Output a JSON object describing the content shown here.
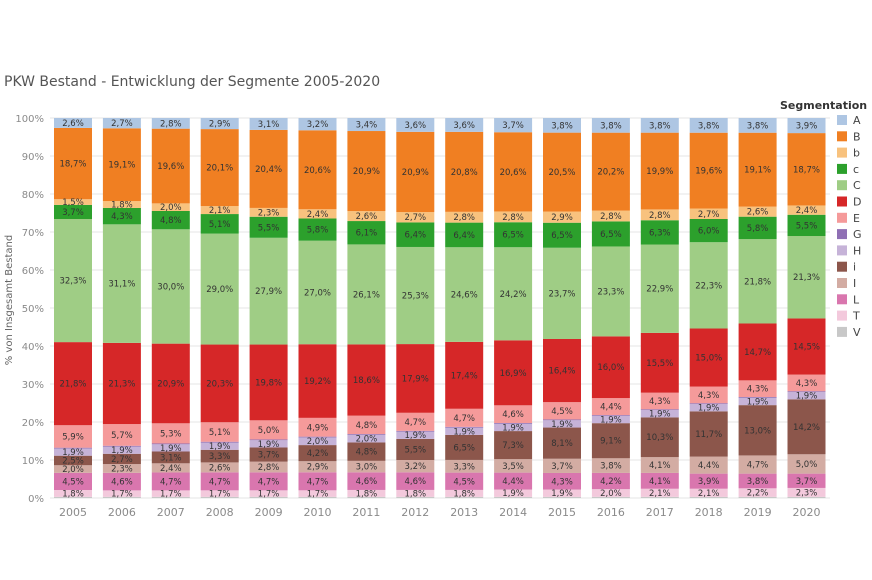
{
  "chart_data": {
    "type": "bar",
    "stacked": true,
    "title": "PKW Bestand - Entwicklung der Segmente 2005-2020",
    "ylabel": "% von Insgesamt Bestand",
    "ylim": [
      0,
      100
    ],
    "yticks": [
      "0%",
      "10%",
      "20%",
      "30%",
      "40%",
      "50%",
      "60%",
      "70%",
      "80%",
      "90%",
      "100%"
    ],
    "categories": [
      "2005",
      "2006",
      "2007",
      "2008",
      "2009",
      "2010",
      "2011",
      "2012",
      "2013",
      "2014",
      "2015",
      "2016",
      "2017",
      "2018",
      "2019",
      "2020"
    ],
    "legend": {
      "title": "Segmentation",
      "position": "right"
    },
    "series": [
      {
        "name": "V",
        "color": "#c8c8c8",
        "values": [
          0.3,
          0.3,
          0.3,
          0.3,
          0.3,
          0.3,
          0.3,
          0.3,
          0.3,
          0.3,
          0.3,
          0.3,
          0.3,
          0.3,
          0.3,
          0.3
        ],
        "labels": []
      },
      {
        "name": "T",
        "color": "#f3c9dc",
        "values": [
          1.8,
          1.7,
          1.7,
          1.7,
          1.7,
          1.7,
          1.8,
          1.8,
          1.8,
          1.9,
          1.9,
          2.0,
          2.1,
          2.1,
          2.2,
          2.3
        ],
        "labels": [
          "1,8%",
          "1,7%",
          "1,7%",
          "1,7%",
          "1,7%",
          "1,7%",
          "1,8%",
          "1,8%",
          "1,8%",
          "1,9%",
          "1,9%",
          "2,0%",
          "2,1%",
          "2,1%",
          "2,2%",
          "2,3%"
        ]
      },
      {
        "name": "L",
        "color": "#d976ae",
        "values": [
          4.5,
          4.6,
          4.7,
          4.7,
          4.7,
          4.7,
          4.6,
          4.6,
          4.5,
          4.4,
          4.3,
          4.2,
          4.1,
          3.9,
          3.8,
          3.7
        ],
        "labels": [
          "4,5%",
          "4,6%",
          "4,7%",
          "4,7%",
          "4,7%",
          "4,7%",
          "4,6%",
          "4,6%",
          "4,5%",
          "4,4%",
          "4,3%",
          "4,2%",
          "4,1%",
          "3,9%",
          "3,8%",
          "3,7%"
        ]
      },
      {
        "name": "I",
        "color": "#d3aca3",
        "values": [
          2.0,
          2.3,
          2.4,
          2.6,
          2.8,
          2.9,
          3.0,
          3.2,
          3.3,
          3.5,
          3.7,
          3.8,
          4.1,
          4.4,
          4.7,
          5.0
        ],
        "labels": [
          "2,0%",
          "2,3%",
          "2,4%",
          "2,6%",
          "2,8%",
          "2,9%",
          "3,0%",
          "3,2%",
          "3,3%",
          "3,5%",
          "3,7%",
          "3,8%",
          "4,1%",
          "4,4%",
          "4,7%",
          "5,0%"
        ]
      },
      {
        "name": "i",
        "color": "#8c564b",
        "values": [
          2.5,
          2.7,
          3.1,
          3.3,
          3.7,
          4.2,
          4.8,
          5.5,
          6.5,
          7.3,
          8.1,
          9.1,
          10.3,
          11.7,
          13.0,
          14.2
        ],
        "labels": [
          "2,5%",
          "2,7%",
          "3,1%",
          "3,3%",
          "3,7%",
          "4,2%",
          "4,8%",
          "5,5%",
          "6,5%",
          "7,3%",
          "8,1%",
          "9,1%",
          "10,3%",
          "11,7%",
          "13,0%",
          "14,2%"
        ]
      },
      {
        "name": "H",
        "color": "#c6b3d8",
        "values": [
          1.9,
          1.9,
          1.9,
          1.9,
          1.9,
          2.0,
          2.0,
          1.9,
          1.9,
          1.9,
          1.9,
          1.9,
          1.9,
          1.9,
          1.9,
          1.9
        ],
        "labels": [
          "1,9%",
          "1,9%",
          "1,9%",
          "1,9%",
          "1,9%",
          "2,0%",
          "2,0%",
          "1,9%",
          "1,9%",
          "1,9%",
          "1,9%",
          "1,9%",
          "1,9%",
          "1,9%",
          "1,9%",
          "1,9%"
        ]
      },
      {
        "name": "G",
        "color": "#8f6fb4",
        "values": [
          0.2,
          0.2,
          0.2,
          0.2,
          0.2,
          0.2,
          0.2,
          0.2,
          0.2,
          0.2,
          0.2,
          0.2,
          0.2,
          0.2,
          0.2,
          0.2
        ],
        "labels": []
      },
      {
        "name": "E",
        "color": "#f59a9a",
        "values": [
          5.9,
          5.7,
          5.3,
          5.1,
          5.0,
          4.9,
          4.8,
          4.7,
          4.7,
          4.6,
          4.5,
          4.4,
          4.3,
          4.3,
          4.3,
          4.3
        ],
        "labels": [
          "5,9%",
          "5,7%",
          "5,3%",
          "5,1%",
          "5,0%",
          "4,9%",
          "4,8%",
          "4,7%",
          "4,7%",
          "4,6%",
          "4,5%",
          "4,4%",
          "4,3%",
          "4,3%",
          "4,3%",
          "4,3%"
        ]
      },
      {
        "name": "D",
        "color": "#d62728",
        "values": [
          21.8,
          21.3,
          20.9,
          20.3,
          19.8,
          19.2,
          18.6,
          17.9,
          17.4,
          16.9,
          16.4,
          16.0,
          15.5,
          15.0,
          14.7,
          14.5
        ],
        "labels": [
          "21,8%",
          "21,3%",
          "20,9%",
          "20,3%",
          "19,8%",
          "19,2%",
          "18,6%",
          "17,9%",
          "17,4%",
          "16,9%",
          "16,4%",
          "16,0%",
          "15,5%",
          "15,0%",
          "14,7%",
          "14,5%"
        ]
      },
      {
        "name": "C",
        "color": "#9fcd85",
        "values": [
          32.3,
          31.1,
          30.0,
          29.0,
          27.9,
          27.0,
          26.1,
          25.3,
          24.6,
          24.2,
          23.7,
          23.3,
          22.9,
          22.3,
          21.8,
          21.3
        ],
        "labels": [
          "32,3%",
          "31,1%",
          "30,0%",
          "29,0%",
          "27,9%",
          "27,0%",
          "26,1%",
          "25,3%",
          "24,6%",
          "24,2%",
          "23,7%",
          "23,3%",
          "22,9%",
          "22,3%",
          "21,8%",
          "21,3%"
        ]
      },
      {
        "name": "c",
        "color": "#2ca02c",
        "values": [
          3.7,
          4.3,
          4.8,
          5.1,
          5.5,
          5.8,
          6.1,
          6.4,
          6.4,
          6.5,
          6.5,
          6.5,
          6.3,
          6.0,
          5.8,
          5.5
        ],
        "labels": [
          "3,7%",
          "4,3%",
          "4,8%",
          "5,1%",
          "5,5%",
          "5,8%",
          "6,1%",
          "6,4%",
          "6,4%",
          "6,5%",
          "6,5%",
          "6,5%",
          "6,3%",
          "6,0%",
          "5,8%",
          "5,5%"
        ]
      },
      {
        "name": "b",
        "color": "#f8c27e",
        "values": [
          1.5,
          1.8,
          2.0,
          2.1,
          2.3,
          2.4,
          2.6,
          2.7,
          2.8,
          2.8,
          2.9,
          2.8,
          2.8,
          2.7,
          2.6,
          2.4
        ],
        "labels": [
          "1,5%",
          "1,8%",
          "2,0%",
          "2,1%",
          "2,3%",
          "2,4%",
          "2,6%",
          "2,7%",
          "2,8%",
          "2,8%",
          "2,9%",
          "2,8%",
          "2,8%",
          "2,7%",
          "2,6%",
          "2,4%"
        ]
      },
      {
        "name": "B",
        "color": "#f07f22",
        "values": [
          18.7,
          19.1,
          19.6,
          20.1,
          20.4,
          20.6,
          20.9,
          20.9,
          20.8,
          20.6,
          20.5,
          20.2,
          19.9,
          19.6,
          19.1,
          18.7
        ],
        "labels": [
          "18,7%",
          "19,1%",
          "19,6%",
          "20,1%",
          "20,4%",
          "20,6%",
          "20,9%",
          "20,9%",
          "20,8%",
          "20,6%",
          "20,5%",
          "20,2%",
          "19,9%",
          "19,6%",
          "19,1%",
          "18,7%"
        ]
      },
      {
        "name": "A",
        "color": "#aec6e3",
        "values": [
          2.6,
          2.7,
          2.8,
          2.9,
          3.1,
          3.2,
          3.4,
          3.6,
          3.6,
          3.7,
          3.8,
          3.8,
          3.8,
          3.8,
          3.8,
          3.9
        ],
        "labels": [
          "2,6%",
          "2,7%",
          "2,8%",
          "2,9%",
          "3,1%",
          "3,2%",
          "3,4%",
          "3,6%",
          "3,6%",
          "3,7%",
          "3,8%",
          "3,8%",
          "3,8%",
          "3,8%",
          "3,8%",
          "3,9%"
        ]
      }
    ],
    "legend_order": [
      "A",
      "B",
      "b",
      "c",
      "C",
      "D",
      "E",
      "G",
      "H",
      "i",
      "I",
      "L",
      "T",
      "V"
    ]
  }
}
